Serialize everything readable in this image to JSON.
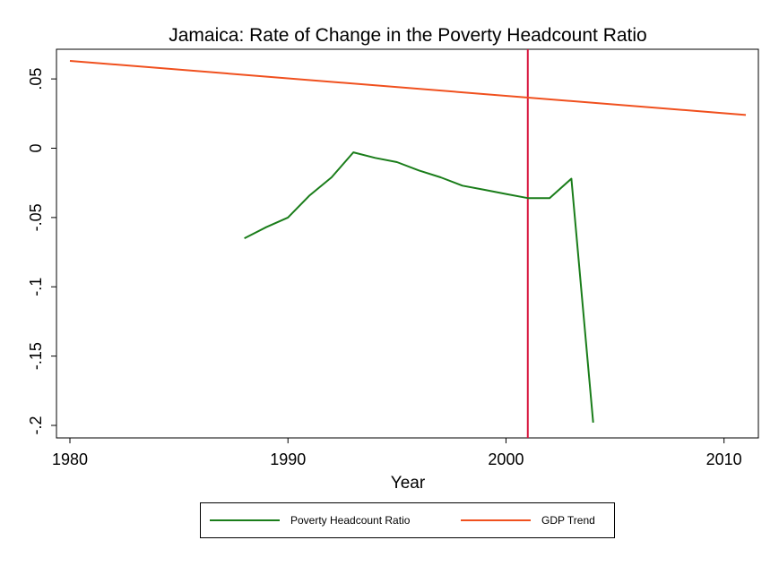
{
  "chart_data": {
    "type": "line",
    "title": "Jamaica: Rate of Change in the Poverty Headcount Ratio",
    "xlabel": "Year",
    "ylabel": "",
    "xlim": [
      1980,
      2011
    ],
    "ylim": [
      -0.2,
      0.063
    ],
    "xticks": [
      {
        "value": 1980,
        "label": "1980"
      },
      {
        "value": 1990,
        "label": "1990"
      },
      {
        "value": 2000,
        "label": "2000"
      },
      {
        "value": 2010,
        "label": "2010"
      }
    ],
    "yticks": [
      {
        "value": 0.05,
        "label": ".05"
      },
      {
        "value": 0,
        "label": "0"
      },
      {
        "value": -0.05,
        "label": "-.05"
      },
      {
        "value": -0.1,
        "label": "-.1"
      },
      {
        "value": -0.15,
        "label": "-.15"
      },
      {
        "value": -0.2,
        "label": "-.2"
      }
    ],
    "series": [
      {
        "name": "Poverty Headcount Ratio",
        "color": "#1a7d1a",
        "x": [
          1988,
          1989,
          1990,
          1991,
          1992,
          1993,
          1994,
          1995,
          1996,
          1997,
          1998,
          1999,
          2000,
          2001,
          2002,
          2003,
          2004
        ],
        "y": [
          -0.065,
          -0.057,
          -0.05,
          -0.034,
          -0.021,
          -0.003,
          -0.007,
          -0.01,
          -0.016,
          -0.021,
          -0.027,
          -0.03,
          -0.033,
          -0.036,
          -0.036,
          -0.022,
          -0.198
        ]
      },
      {
        "name": "GDP Trend",
        "color": "#f0501e",
        "x": [
          1980,
          2011
        ],
        "y": [
          0.063,
          0.024
        ]
      }
    ],
    "reference_lines": [
      {
        "axis": "x",
        "value": 2001,
        "color": "#d7143c"
      }
    ],
    "legend_position": "bottom",
    "grid": false
  }
}
